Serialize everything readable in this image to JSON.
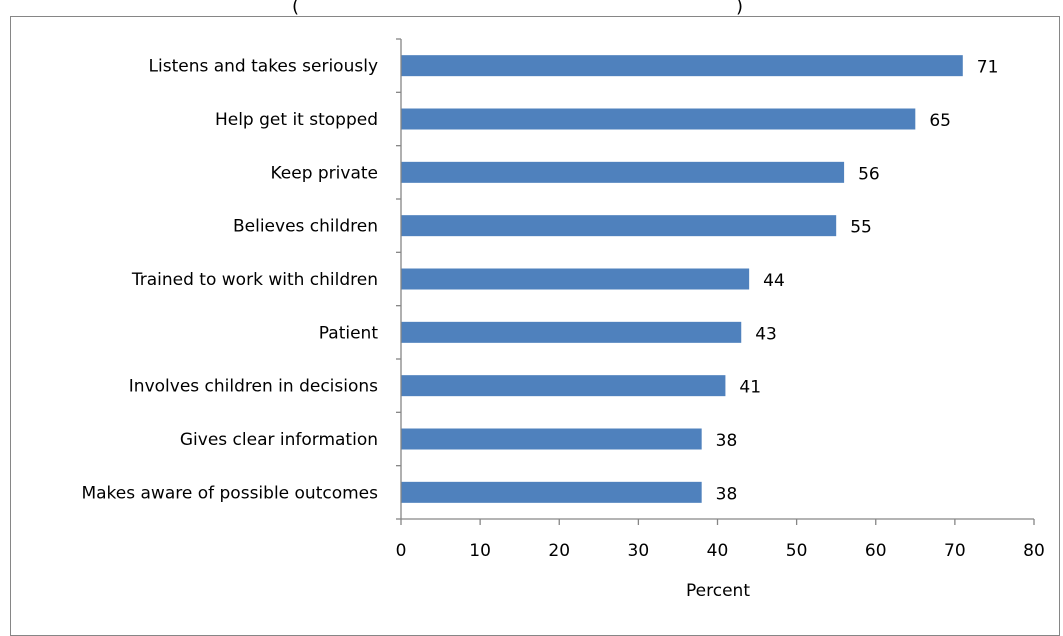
{
  "chart_data": {
    "type": "bar",
    "orientation": "horizontal",
    "title": "(",
    "title_right": ")",
    "categories": [
      "Listens and takes seriously",
      "Help get it stopped",
      "Keep private",
      "Believes children",
      "Trained to work with children",
      "Patient",
      "Involves children in decisions",
      "Gives clear information",
      "Makes aware of possible outcomes"
    ],
    "values": [
      71,
      65,
      56,
      55,
      44,
      43,
      41,
      38,
      38
    ],
    "xlabel": "Percent",
    "ylabel": "",
    "xlim": [
      0,
      80
    ],
    "xticks": [
      "0",
      "10",
      "20",
      "30",
      "40",
      "50",
      "60",
      "70",
      "80"
    ],
    "grid": false,
    "legend": "none",
    "bar_color": "#4F81BD"
  }
}
